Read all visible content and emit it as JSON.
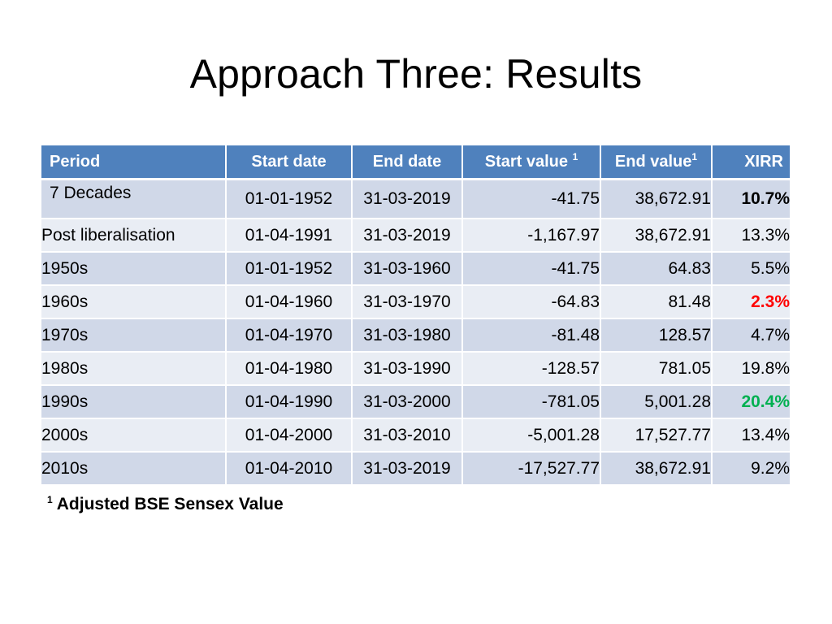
{
  "slide": {
    "title": "Approach Three: Results",
    "footnote_mark": "1",
    "footnote_text": "Adjusted BSE Sensex Value"
  },
  "table": {
    "headers": {
      "period": "Period",
      "start_date": "Start  date",
      "end_date": "End date",
      "start_value": "Start value",
      "start_value_mark": "1",
      "end_value": "End value",
      "end_value_mark": "1",
      "xirr": "XIRR"
    },
    "rows": [
      {
        "period": "7 Decades",
        "start_date": "01-01-1952",
        "end_date": "31-03-2019",
        "start_value": "-41.75",
        "end_value": "38,672.91",
        "xirr": "10.7%"
      },
      {
        "period": "Post liberalisation",
        "start_date": "01-04-1991",
        "end_date": "31-03-2019",
        "start_value": "-1,167.97",
        "end_value": "38,672.91",
        "xirr": "13.3%"
      },
      {
        "period": "1950s",
        "start_date": "01-01-1952",
        "end_date": "31-03-1960",
        "start_value": "-41.75",
        "end_value": "64.83",
        "xirr": "5.5%"
      },
      {
        "period": "1960s",
        "start_date": "01-04-1960",
        "end_date": "31-03-1970",
        "start_value": "-64.83",
        "end_value": "81.48",
        "xirr": "2.3%"
      },
      {
        "period": "1970s",
        "start_date": "01-04-1970",
        "end_date": "31-03-1980",
        "start_value": "-81.48",
        "end_value": "128.57",
        "xirr": "4.7%"
      },
      {
        "period": "1980s",
        "start_date": "01-04-1980",
        "end_date": "31-03-1990",
        "start_value": "-128.57",
        "end_value": "781.05",
        "xirr": "19.8%"
      },
      {
        "period": "1990s",
        "start_date": "01-04-1990",
        "end_date": "31-03-2000",
        "start_value": "-781.05",
        "end_value": "5,001.28",
        "xirr": "20.4%"
      },
      {
        "period": "2000s",
        "start_date": "01-04-2000",
        "end_date": "31-03-2010",
        "start_value": "-5,001.28",
        "end_value": "17,527.77",
        "xirr": "13.4%"
      },
      {
        "period": "2010s",
        "start_date": "01-04-2010",
        "end_date": "31-03-2019",
        "start_value": "-17,527.77",
        "end_value": "38,672.91",
        "xirr": "9.2%"
      }
    ]
  },
  "colors": {
    "header_bg": "#4f81bd",
    "row_band_dark": "#d0d8e8",
    "row_band_light": "#e9edf4",
    "lowest_xirr": "#ff0000",
    "highest_xirr": "#00b050"
  }
}
